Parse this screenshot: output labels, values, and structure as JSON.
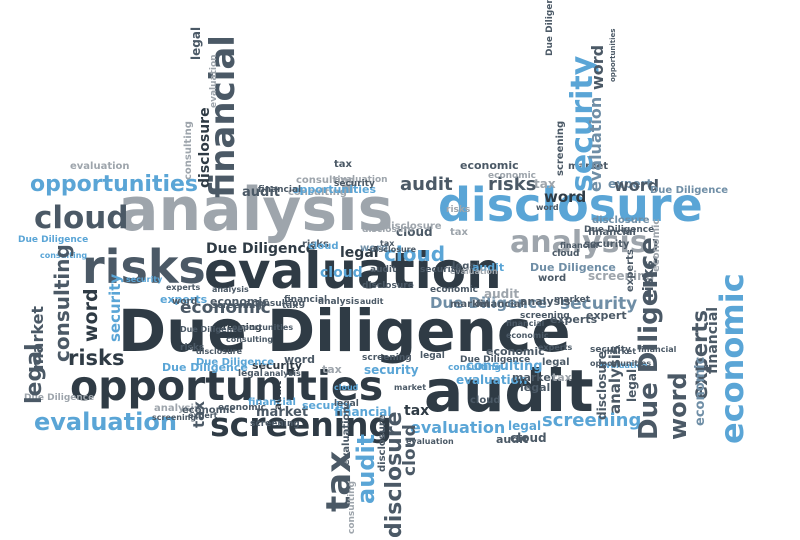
{
  "palette": {
    "dark": "#2f3b45",
    "slate": "#4b5966",
    "gray": "#9ea5ac",
    "light_gray": "#c3c8cd",
    "blue": "#5aa5d6",
    "steel": "#6f8ea6"
  },
  "words": [
    {
      "text": "Due Diligence"
    },
    {
      "text": "opportunities"
    },
    {
      "text": "audit"
    },
    {
      "text": "analysis"
    },
    {
      "text": "disclosure"
    },
    {
      "text": "risks"
    },
    {
      "text": "evaluation"
    },
    {
      "text": "screening"
    },
    {
      "text": "evaluation"
    },
    {
      "text": "opportunities"
    },
    {
      "text": "cloud"
    },
    {
      "text": "analysis"
    },
    {
      "text": "audit"
    },
    {
      "text": "risks"
    },
    {
      "text": "tax"
    },
    {
      "text": "economic"
    },
    {
      "text": "expert"
    },
    {
      "text": "word"
    },
    {
      "text": "security"
    },
    {
      "text": "economic"
    },
    {
      "text": "experts"
    },
    {
      "text": "financial"
    },
    {
      "text": "market"
    },
    {
      "text": "legal"
    },
    {
      "text": "cloud"
    },
    {
      "text": "Due Diligence"
    },
    {
      "text": "audit"
    },
    {
      "text": "risks"
    },
    {
      "text": "word"
    },
    {
      "text": "Due Diligence"
    },
    {
      "text": "security"
    },
    {
      "text": "screening"
    },
    {
      "text": "consulting"
    },
    {
      "text": "evaluation"
    },
    {
      "text": "legal"
    },
    {
      "text": "cloud"
    },
    {
      "text": "security"
    },
    {
      "text": "economic"
    },
    {
      "text": "market"
    },
    {
      "text": "tax"
    },
    {
      "text": "financial"
    },
    {
      "text": "market"
    },
    {
      "text": "consulting"
    },
    {
      "text": "word"
    },
    {
      "text": "security"
    },
    {
      "text": "risks"
    },
    {
      "text": "legal"
    },
    {
      "text": "evaluation"
    },
    {
      "text": "cloud"
    },
    {
      "text": "Due Diligence"
    },
    {
      "text": "legal"
    },
    {
      "text": "tax"
    },
    {
      "text": "disclosure"
    },
    {
      "text": "audit"
    },
    {
      "text": "cloud"
    },
    {
      "text": "disclosure"
    },
    {
      "text": "financial"
    },
    {
      "text": "security"
    },
    {
      "text": "screening"
    },
    {
      "text": "word"
    },
    {
      "text": "Due Diligence"
    },
    {
      "text": "disclosure"
    },
    {
      "text": "audit"
    },
    {
      "text": "financial"
    },
    {
      "text": "market"
    },
    {
      "text": "Due Diligence"
    },
    {
      "text": "word"
    },
    {
      "text": "evaluation"
    },
    {
      "text": "economic"
    },
    {
      "text": "expert"
    },
    {
      "text": "analysis"
    },
    {
      "text": "market"
    },
    {
      "text": "screening"
    },
    {
      "text": "word"
    },
    {
      "text": "Due Diligence"
    },
    {
      "text": "economic"
    },
    {
      "text": "consulting"
    },
    {
      "text": "evaluation"
    },
    {
      "text": "screening"
    },
    {
      "text": "analysis"
    },
    {
      "text": "cloud"
    },
    {
      "text": "legal"
    },
    {
      "text": "tax"
    },
    {
      "text": "economic"
    },
    {
      "text": "financial"
    },
    {
      "text": "Due Diligence"
    },
    {
      "text": "consulting"
    },
    {
      "text": "audit"
    },
    {
      "text": "legal"
    },
    {
      "text": "risks"
    },
    {
      "text": "tax"
    },
    {
      "text": "Due Diligence"
    },
    {
      "text": "consulting"
    },
    {
      "text": "evaluation"
    },
    {
      "text": "audit"
    },
    {
      "text": "security"
    },
    {
      "text": "opportunities"
    },
    {
      "text": "experts"
    },
    {
      "text": "screening"
    },
    {
      "text": "economic"
    },
    {
      "text": "analysis"
    },
    {
      "text": "tax"
    },
    {
      "text": "Due Diligence"
    },
    {
      "text": "security"
    },
    {
      "text": "market"
    },
    {
      "text": "financial"
    },
    {
      "text": "disclosure"
    },
    {
      "text": "consulting"
    },
    {
      "text": "cloud"
    },
    {
      "text": "risks"
    },
    {
      "text": "financial"
    },
    {
      "text": "economic"
    },
    {
      "text": "cloud"
    },
    {
      "text": "evaluation"
    },
    {
      "text": "Due Diligence"
    },
    {
      "text": "opportunities"
    },
    {
      "text": "tax"
    },
    {
      "text": "screening"
    },
    {
      "text": "analysis"
    },
    {
      "text": "legal"
    },
    {
      "text": "disclosure"
    },
    {
      "text": "expert"
    },
    {
      "text": "security"
    },
    {
      "text": "experts"
    },
    {
      "text": "consulting"
    },
    {
      "text": "tax"
    },
    {
      "text": "financial"
    },
    {
      "text": "screening"
    },
    {
      "text": "experts"
    },
    {
      "text": "analysis"
    },
    {
      "text": "legal"
    },
    {
      "text": "disclosure"
    },
    {
      "text": "cloud"
    },
    {
      "text": "market"
    },
    {
      "text": "word"
    },
    {
      "text": "audit"
    },
    {
      "text": "security"
    },
    {
      "text": "financial"
    },
    {
      "text": "evaluation"
    },
    {
      "text": "screening"
    },
    {
      "text": "opportunities"
    },
    {
      "text": "Due Diligence"
    },
    {
      "text": "economic"
    }
  ]
}
